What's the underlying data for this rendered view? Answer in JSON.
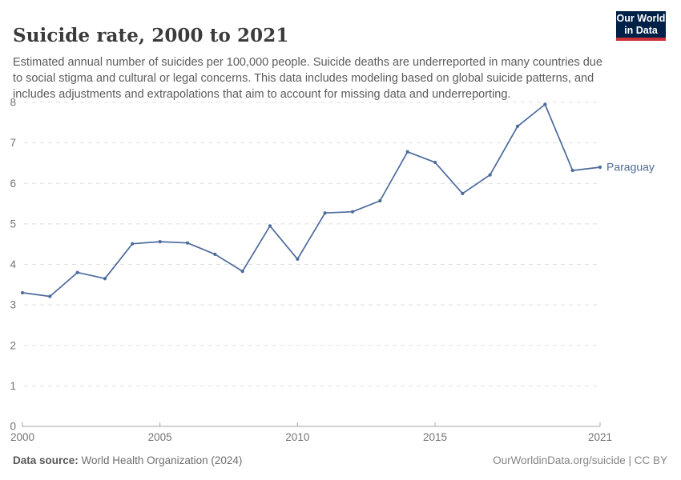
{
  "header": {
    "title": "Suicide rate, 2000 to 2021",
    "subtitle": "Estimated annual number of suicides per 100,000 people. Suicide deaths are underreported in many countries due to social stigma and cultural or legal concerns. This data includes modeling based on global suicide patterns, and includes adjustments and extrapolations that aim to account for missing data and underreporting.",
    "logo": {
      "line1": "Our World",
      "line2": "in Data",
      "bg_color": "#002147",
      "stripe_color": "#cc3038",
      "text_color": "#ffffff"
    }
  },
  "chart_data": {
    "type": "line",
    "title": "Suicide rate, 2000 to 2021",
    "xlabel": "",
    "ylabel": "",
    "xlim": [
      2000,
      2021
    ],
    "ylim": [
      0,
      8
    ],
    "x_ticks": [
      2000,
      2005,
      2010,
      2015,
      2021
    ],
    "y_ticks": [
      0,
      1,
      2,
      3,
      4,
      5,
      6,
      7,
      8
    ],
    "grid": "horizontal-dashed",
    "legend_position": "end-of-line-label",
    "series": [
      {
        "name": "Paraguay",
        "color": "#4C6A9C",
        "x": [
          2000,
          2001,
          2002,
          2003,
          2004,
          2005,
          2006,
          2007,
          2008,
          2009,
          2010,
          2011,
          2012,
          2013,
          2014,
          2015,
          2016,
          2017,
          2018,
          2019,
          2020,
          2021
        ],
        "values": [
          3.3,
          3.21,
          3.8,
          3.65,
          4.51,
          4.56,
          4.53,
          4.25,
          3.83,
          4.95,
          4.13,
          5.27,
          5.3,
          5.57,
          6.78,
          6.52,
          5.75,
          6.21,
          7.41,
          7.95,
          6.32,
          6.4
        ]
      }
    ],
    "colors": {
      "gridline": "#e0e0e0",
      "axis_line": "#a5a5a5",
      "tick_label": "#737373"
    }
  },
  "footer": {
    "datasource_label": "Data source:",
    "datasource_value": "World Health Organization (2024)",
    "link": "OurWorldinData.org/suicide | CC BY"
  }
}
